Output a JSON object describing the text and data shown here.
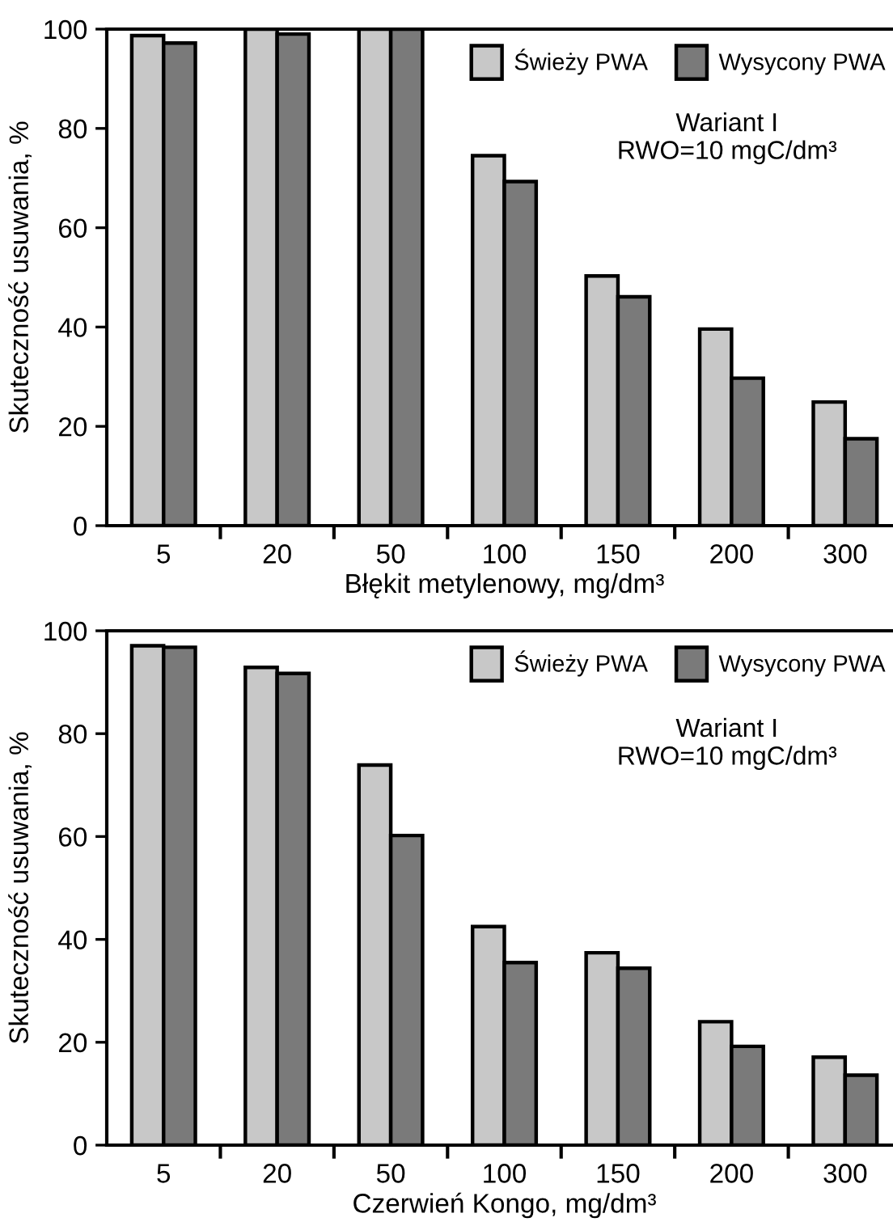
{
  "chart_data": [
    {
      "type": "bar",
      "categories": [
        "5",
        "20",
        "50",
        "100",
        "150",
        "200",
        "300"
      ],
      "xlabel": "Błękit metylenowy, mg/dm³",
      "ylabel": "Skuteczność usuwania, %",
      "ylim": [
        0,
        100
      ],
      "yticks": [
        0,
        20,
        40,
        60,
        80,
        100
      ],
      "grid": false,
      "legend": "top right",
      "series": [
        {
          "name": "Świeży PWA",
          "color": "#c8c8c8",
          "values": [
            98.7,
            100,
            100,
            74.5,
            50.3,
            39.6,
            24.9
          ]
        },
        {
          "name": "Wysycony PWA",
          "color": "#7a7a7a",
          "values": [
            97.2,
            99,
            100,
            69.3,
            46.1,
            29.7,
            17.5
          ]
        }
      ],
      "annotations": [
        "Wariant I",
        "RWO=10 mgC/dm³"
      ]
    },
    {
      "type": "bar",
      "categories": [
        "5",
        "20",
        "50",
        "100",
        "150",
        "200",
        "300"
      ],
      "xlabel": "Czerwień Kongo, mg/dm³",
      "ylabel": "Skuteczność usuwania, %",
      "ylim": [
        0,
        100
      ],
      "yticks": [
        0,
        20,
        40,
        60,
        80,
        100
      ],
      "grid": false,
      "legend": "top right",
      "series": [
        {
          "name": "Świeży PWA",
          "color": "#c8c8c8",
          "values": [
            97.1,
            92.9,
            73.9,
            42.5,
            37.4,
            24.0,
            17.1
          ]
        },
        {
          "name": "Wysycony PWA",
          "color": "#7a7a7a",
          "values": [
            96.8,
            91.7,
            60.2,
            35.5,
            34.4,
            19.2,
            13.6
          ]
        }
      ],
      "annotations": [
        "Wariant I",
        "RWO=10 mgC/dm³"
      ]
    }
  ]
}
